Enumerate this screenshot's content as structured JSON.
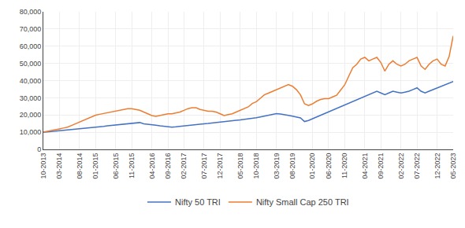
{
  "chart_data": {
    "type": "line",
    "categories": [
      "10-2013",
      null,
      null,
      null,
      "03-2014",
      null,
      null,
      null,
      null,
      "08-2014",
      null,
      null,
      null,
      "01-2015",
      null,
      null,
      null,
      null,
      "06-2015",
      null,
      null,
      null,
      "11-2015",
      null,
      null,
      null,
      null,
      "04-2016",
      null,
      null,
      null,
      "09-2016",
      null,
      null,
      null,
      "02-2017",
      null,
      null,
      null,
      null,
      "07-2017",
      null,
      null,
      null,
      "12-2017",
      null,
      null,
      null,
      null,
      "05-2018",
      null,
      null,
      null,
      "10-2018",
      null,
      null,
      null,
      null,
      "03-2019",
      null,
      null,
      null,
      "08-2019",
      null,
      null,
      null,
      null,
      "01-2020",
      null,
      null,
      null,
      "06-2020",
      null,
      null,
      null,
      "11-2020",
      null,
      null,
      null,
      null,
      "04-2021",
      null,
      null,
      null,
      "09-2021",
      null,
      null,
      null,
      null,
      "02-2022",
      null,
      null,
      null,
      "07-2022",
      null,
      null,
      null,
      null,
      "12-2022",
      null,
      null,
      null,
      "05-2023"
    ],
    "series": [
      {
        "name": "Nifty 50 TRI",
        "color": "#4472C4",
        "values": [
          10000,
          10100,
          10300,
          10600,
          10900,
          11100,
          11300,
          11600,
          11800,
          12000,
          12200,
          12400,
          12700,
          12900,
          13100,
          13400,
          13700,
          13900,
          14100,
          14400,
          14700,
          14900,
          15100,
          15400,
          15600,
          14900,
          14700,
          14400,
          14100,
          13700,
          13400,
          13100,
          12900,
          13100,
          13400,
          13700,
          13900,
          14100,
          14400,
          14700,
          14900,
          15100,
          15400,
          15700,
          15900,
          16100,
          16400,
          16700,
          16900,
          17100,
          17400,
          17700,
          17900,
          18400,
          18900,
          19400,
          19800,
          20300,
          20800,
          20600,
          20300,
          19800,
          19300,
          18800,
          18300,
          16200,
          16800,
          17800,
          18800,
          19800,
          20800,
          21800,
          22800,
          23800,
          24800,
          25800,
          26800,
          27800,
          28800,
          29800,
          30800,
          31800,
          32800,
          33800,
          32800,
          31800,
          32800,
          33800,
          33300,
          32800,
          33300,
          33800,
          34800,
          35800,
          33800,
          32800,
          33800,
          34800,
          35800,
          36800,
          37800,
          38800,
          39500
        ]
      },
      {
        "name": "Nifty Small Cap 250 TRI",
        "color": "#ED7D31",
        "values": [
          10000,
          10400,
          10900,
          11400,
          11900,
          12400,
          12900,
          13900,
          14900,
          15900,
          16900,
          17900,
          18900,
          19900,
          20400,
          20900,
          21200,
          21700,
          22200,
          22700,
          23200,
          23700,
          23700,
          23200,
          22700,
          21700,
          20700,
          19700,
          19200,
          19700,
          20200,
          20700,
          20700,
          21200,
          21700,
          22700,
          23700,
          24200,
          24200,
          23200,
          22700,
          22200,
          22200,
          21700,
          20700,
          19700,
          20200,
          20700,
          21700,
          22700,
          23700,
          24700,
          26700,
          27700,
          29700,
          31700,
          32700,
          33700,
          34700,
          35700,
          36700,
          37700,
          36700,
          34700,
          31700,
          26500,
          25500,
          26500,
          28000,
          29000,
          29500,
          29500,
          30500,
          31500,
          34500,
          37500,
          42500,
          47500,
          49500,
          52500,
          53500,
          51500,
          52500,
          53500,
          50500,
          45500,
          49500,
          51500,
          49500,
          48500,
          49500,
          51500,
          52500,
          53500,
          48500,
          46500,
          49500,
          51500,
          52500,
          49500,
          48500,
          54000,
          66000
        ]
      }
    ],
    "ylim": [
      0,
      80000
    ],
    "yticks": [
      0,
      {
        "value": 10000,
        "label": "10,000"
      },
      {
        "value": 20000,
        "label": "20,000"
      },
      {
        "value": 30000,
        "label": "30,000"
      },
      {
        "value": 40000,
        "label": "40,000"
      },
      {
        "value": 50000,
        "label": "50,000"
      },
      {
        "value": 60000,
        "label": "60,000"
      },
      {
        "value": 70000,
        "label": "70,000"
      },
      {
        "value": 80000,
        "label": "80,000"
      }
    ],
    "grid": true,
    "legend": "bottom"
  }
}
